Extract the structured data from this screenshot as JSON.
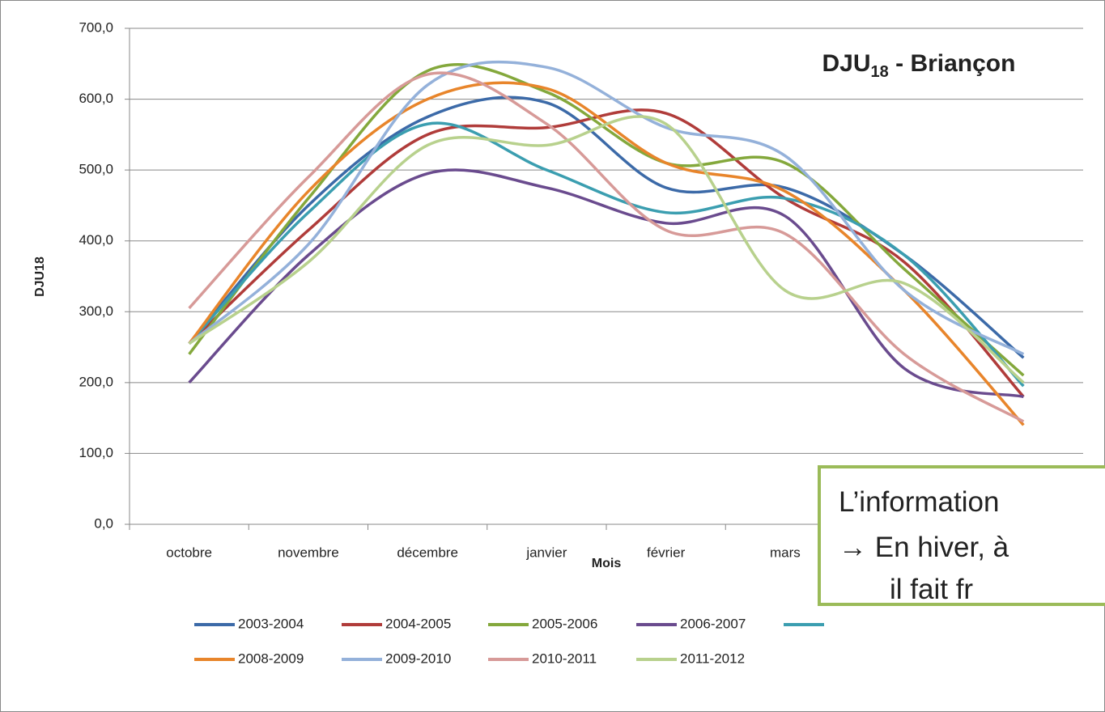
{
  "chart_data": {
    "type": "line",
    "title": {
      "main": "DJU",
      "sub": "18",
      "rest": " - Briançon"
    },
    "y_label": "DJU18",
    "x_label": "Mois",
    "categories": [
      "octobre",
      "novembre",
      "décembre",
      "janvier",
      "février",
      "mars",
      null,
      null
    ],
    "ylim": [
      0,
      700
    ],
    "yticks": [
      {
        "value": 0,
        "label": "0,0"
      },
      {
        "value": 100,
        "label": "100,0"
      },
      {
        "value": 200,
        "label": "200,0"
      },
      {
        "value": 300,
        "label": "300,0"
      },
      {
        "value": 400,
        "label": "400,0"
      },
      {
        "value": 500,
        "label": "500,0"
      },
      {
        "value": 600,
        "label": "600,0"
      },
      {
        "value": 700,
        "label": "700,0"
      }
    ],
    "grid": true,
    "series": [
      {
        "name": "2003-2004",
        "color": "#3c6aa8",
        "values": [
          255,
          450,
          575,
          595,
          475,
          475,
          380,
          235
        ]
      },
      {
        "name": "2004-2005",
        "color": "#b03c3a",
        "values": [
          255,
          415,
          550,
          560,
          580,
          460,
          370,
          180
        ]
      },
      {
        "name": "2005-2006",
        "color": "#84a83c",
        "values": [
          240,
          460,
          640,
          610,
          510,
          510,
          360,
          210
        ]
      },
      {
        "name": "2006-2007",
        "color": "#6a4b8e",
        "values": [
          200,
          380,
          495,
          475,
          425,
          435,
          220,
          180
        ]
      },
      {
        "name": null,
        "color": "#3b9eb0",
        "values": [
          255,
          440,
          565,
          500,
          440,
          460,
          380,
          195
        ]
      },
      {
        "name": "2008-2009",
        "color": "#e8852b",
        "values": [
          255,
          470,
          600,
          615,
          510,
          470,
          330,
          140
        ]
      },
      {
        "name": "2009-2010",
        "color": "#94b1da",
        "values": [
          255,
          395,
          620,
          645,
          560,
          520,
          330,
          240
        ]
      },
      {
        "name": "2010-2011",
        "color": "#d79a98",
        "values": [
          305,
          490,
          635,
          565,
          415,
          410,
          240,
          145
        ]
      },
      {
        "name": "2011-2012",
        "color": "#b8d18d",
        "values": [
          255,
          370,
          535,
          535,
          565,
          330,
          340,
          200
        ]
      }
    ]
  },
  "callout": {
    "lines": [
      "L’information",
      "→ En hiver, à",
      "il fait fr"
    ]
  }
}
